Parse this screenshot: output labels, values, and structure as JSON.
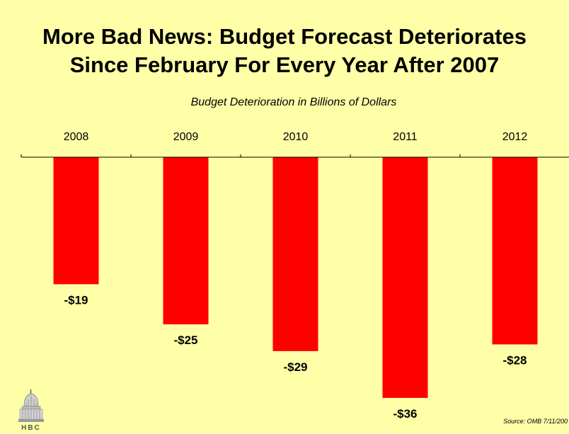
{
  "title": {
    "line1": "More Bad News:  Budget Forecast Deteriorates",
    "line2": "Since February For Every Year After 2007"
  },
  "source": "Source:  OMB   7/11/200",
  "logo": {
    "icon": "capitol-dome-icon",
    "text": "HBC"
  },
  "colors": {
    "background": "#FFFFA8",
    "bar": "#FF0000",
    "text": "#000000"
  },
  "chart_data": {
    "type": "bar",
    "title": "Budget Deterioration in Billions of Dollars",
    "xlabel": "",
    "ylabel": "",
    "categories": [
      "2008",
      "2009",
      "2010",
      "2011",
      "2012"
    ],
    "values": [
      -19,
      -25,
      -29,
      -36,
      -28
    ],
    "data_labels": [
      "-$19",
      "-$25",
      "-$29",
      "-$36",
      "-$28"
    ],
    "ylim": [
      -36,
      0
    ],
    "x_axis_position": "top",
    "grid": false,
    "legend": "none"
  }
}
